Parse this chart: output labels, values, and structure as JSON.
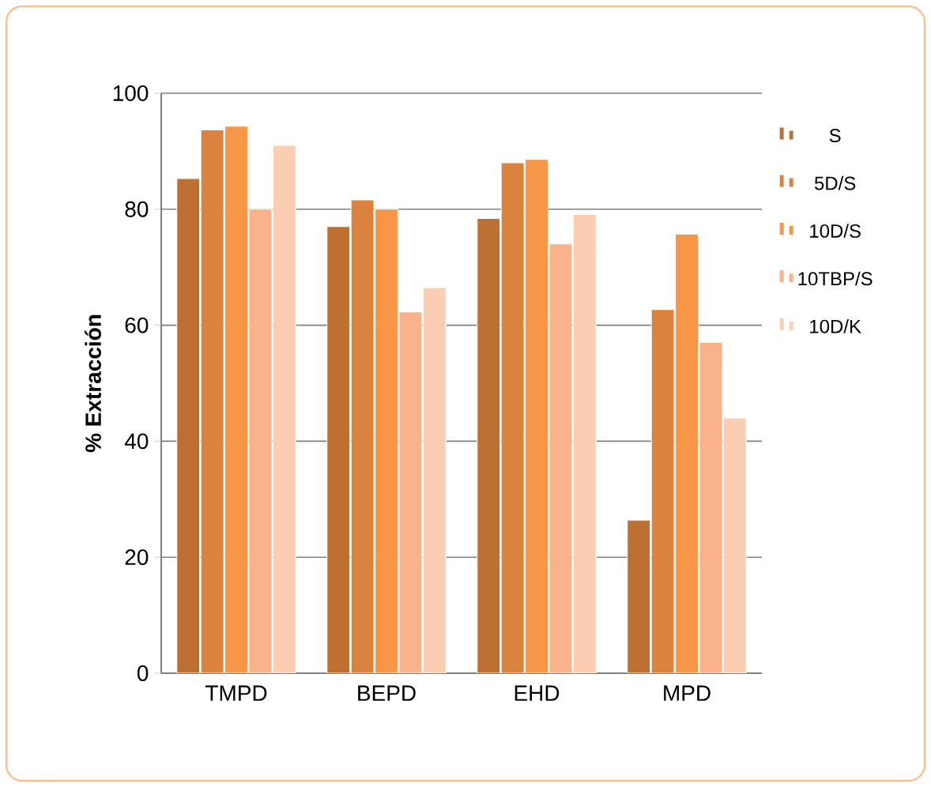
{
  "chart_data": {
    "type": "bar",
    "ylabel": "% Extracción",
    "categories": [
      "TMPD",
      "BEPD",
      "EHD",
      "MPD"
    ],
    "series": [
      {
        "name": "S",
        "color": "#be6f32",
        "values": [
          85.3,
          77,
          78.4,
          26.4
        ]
      },
      {
        "name": "5D/S",
        "color": "#db833c",
        "values": [
          93.7,
          81.6,
          88,
          62.7
        ]
      },
      {
        "name": "10D/S",
        "color": "#f79646",
        "values": [
          94.3,
          80,
          88.6,
          75.7
        ]
      },
      {
        "name": "10TBP/S",
        "color": "#f9b28a",
        "values": [
          80,
          62.3,
          74,
          57
        ]
      },
      {
        "name": "10D/K",
        "color": "#fbceb4",
        "values": [
          91,
          66.5,
          79.1,
          44
        ]
      }
    ],
    "ylim": [
      0,
      100
    ],
    "yticks": [
      0,
      20,
      40,
      60,
      80,
      100
    ],
    "grid": "y",
    "legend": "right"
  }
}
